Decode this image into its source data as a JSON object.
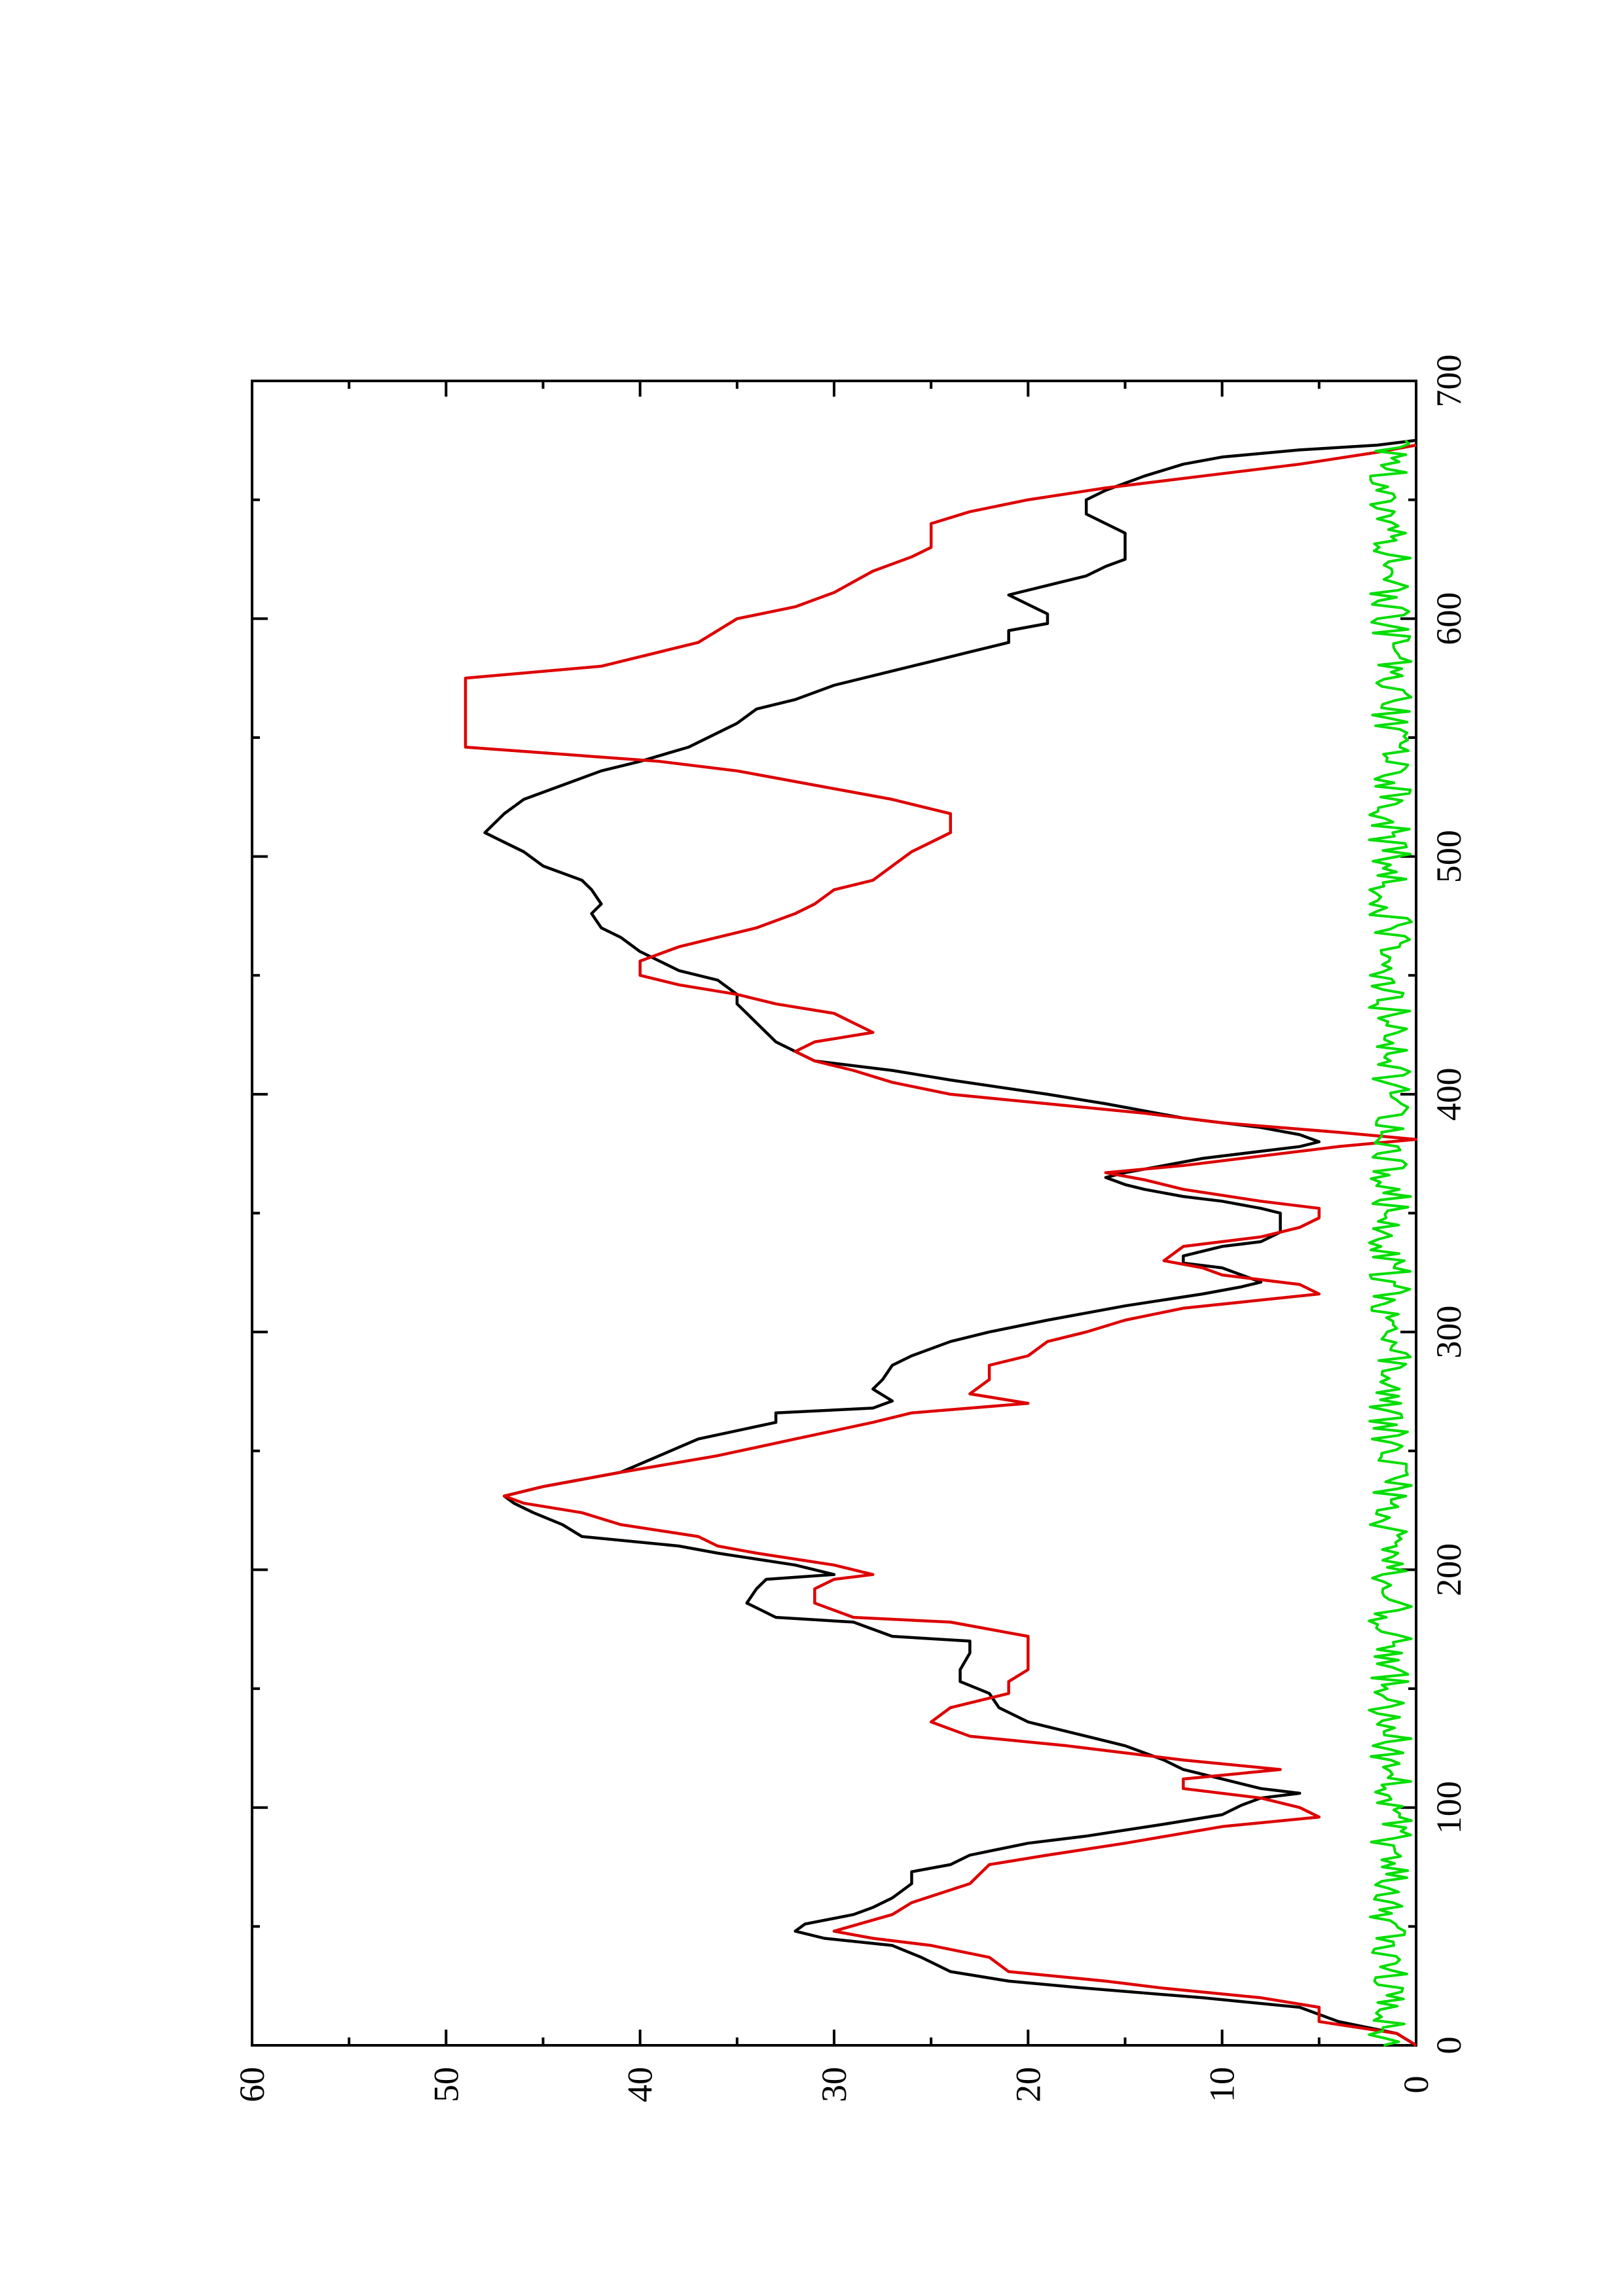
{
  "chart_data": {
    "type": "line",
    "orientation": "rotated-90-ccw",
    "title": "",
    "xlabel": "",
    "ylabel": "",
    "xlim": [
      0,
      700
    ],
    "ylim": [
      0,
      60
    ],
    "x_ticks": [
      0,
      100,
      200,
      300,
      400,
      500,
      600,
      700
    ],
    "y_ticks": [
      0,
      10,
      20,
      30,
      40,
      50,
      60
    ],
    "x_tick_labels": [
      "0",
      "100",
      "200",
      "300",
      "400",
      "500",
      "600",
      "700"
    ],
    "y_tick_labels": [
      "0",
      "10",
      "20",
      "30",
      "40",
      "50",
      "60"
    ],
    "grid": false,
    "legend": "none",
    "series": [
      {
        "color": "#000000",
        "points": [
          [
            0,
            0
          ],
          [
            5,
            1
          ],
          [
            10,
            4
          ],
          [
            16,
            6
          ],
          [
            20,
            11
          ],
          [
            24,
            17
          ],
          [
            27,
            21
          ],
          [
            31,
            24
          ],
          [
            37,
            25.5
          ],
          [
            42,
            27
          ],
          [
            45,
            30.5
          ],
          [
            48,
            32
          ],
          [
            51,
            31.5
          ],
          [
            55,
            29
          ],
          [
            58,
            28
          ],
          [
            62,
            27
          ],
          [
            68,
            26
          ],
          [
            73,
            26
          ],
          [
            76,
            24
          ],
          [
            80,
            23
          ],
          [
            85,
            20
          ],
          [
            88,
            17
          ],
          [
            93,
            13
          ],
          [
            97,
            10
          ],
          [
            101,
            9
          ],
          [
            104,
            8
          ],
          [
            106,
            6
          ],
          [
            108,
            8
          ],
          [
            112,
            10
          ],
          [
            116,
            12
          ],
          [
            120,
            13
          ],
          [
            126,
            15
          ],
          [
            130,
            17
          ],
          [
            136,
            20
          ],
          [
            142,
            21.5
          ],
          [
            148,
            22
          ],
          [
            153,
            23.5
          ],
          [
            158,
            23.5
          ],
          [
            165,
            23
          ],
          [
            170,
            23
          ],
          [
            172,
            27
          ],
          [
            178,
            29
          ],
          [
            180,
            33
          ],
          [
            186,
            34.5
          ],
          [
            192,
            34
          ],
          [
            196,
            33.5
          ],
          [
            198,
            30
          ],
          [
            202,
            32
          ],
          [
            207,
            36
          ],
          [
            210,
            38
          ],
          [
            214,
            43
          ],
          [
            219,
            44
          ],
          [
            224,
            45.5
          ],
          [
            228,
            46.5
          ],
          [
            231,
            47
          ],
          [
            235,
            45
          ],
          [
            241,
            41
          ],
          [
            248,
            39
          ],
          [
            255,
            37
          ],
          [
            262,
            33
          ],
          [
            266,
            33
          ],
          [
            268,
            28
          ],
          [
            271,
            27
          ],
          [
            276,
            28
          ],
          [
            280,
            27.5
          ],
          [
            286,
            27
          ],
          [
            290,
            26
          ],
          [
            296,
            24
          ],
          [
            300,
            22
          ],
          [
            305,
            19
          ],
          [
            311,
            15
          ],
          [
            316,
            11
          ],
          [
            319,
            9
          ],
          [
            321,
            8
          ],
          [
            324,
            9
          ],
          [
            327,
            10
          ],
          [
            329,
            12
          ],
          [
            332,
            12
          ],
          [
            336,
            10
          ],
          [
            338,
            8
          ],
          [
            342,
            7
          ],
          [
            346,
            7
          ],
          [
            350,
            7
          ],
          [
            352,
            8
          ],
          [
            355,
            10
          ],
          [
            357,
            12
          ],
          [
            360,
            14
          ],
          [
            362,
            15
          ],
          [
            365,
            16
          ],
          [
            367,
            15
          ],
          [
            370,
            13
          ],
          [
            373,
            11
          ],
          [
            376,
            8
          ],
          [
            378,
            6
          ],
          [
            380,
            5
          ],
          [
            383,
            6
          ],
          [
            386,
            8
          ],
          [
            390,
            12
          ],
          [
            396,
            16
          ],
          [
            400,
            19
          ],
          [
            406,
            24
          ],
          [
            410,
            27
          ],
          [
            414,
            31
          ],
          [
            418,
            32
          ],
          [
            422,
            33
          ],
          [
            426,
            33.5
          ],
          [
            430,
            34
          ],
          [
            434,
            34.5
          ],
          [
            438,
            35
          ],
          [
            442,
            35
          ],
          [
            448,
            36
          ],
          [
            452,
            38
          ],
          [
            456,
            39
          ],
          [
            460,
            40
          ],
          [
            466,
            41
          ],
          [
            470,
            42
          ],
          [
            476,
            42.5
          ],
          [
            480,
            42
          ],
          [
            486,
            42.5
          ],
          [
            490,
            43
          ],
          [
            496,
            45
          ],
          [
            502,
            46
          ],
          [
            506,
            47
          ],
          [
            510,
            48
          ],
          [
            514,
            47.5
          ],
          [
            518,
            47
          ],
          [
            524,
            46
          ],
          [
            530,
            44
          ],
          [
            536,
            42
          ],
          [
            540,
            40
          ],
          [
            546,
            37.5
          ],
          [
            552,
            36
          ],
          [
            556,
            35
          ],
          [
            562,
            34
          ],
          [
            566,
            32
          ],
          [
            572,
            30
          ],
          [
            578,
            27
          ],
          [
            582,
            25
          ],
          [
            586,
            23
          ],
          [
            590,
            21
          ],
          [
            595,
            21
          ],
          [
            598,
            19
          ],
          [
            602,
            19
          ],
          [
            606,
            20
          ],
          [
            610,
            21
          ],
          [
            614,
            19
          ],
          [
            618,
            17
          ],
          [
            622,
            16
          ],
          [
            625,
            15
          ],
          [
            628,
            15
          ],
          [
            632,
            15
          ],
          [
            636,
            15
          ],
          [
            640,
            16
          ],
          [
            644,
            17
          ],
          [
            650,
            17
          ],
          [
            654,
            16
          ],
          [
            660,
            14
          ],
          [
            665,
            12
          ],
          [
            668,
            10
          ],
          [
            671,
            6
          ],
          [
            673,
            2
          ],
          [
            675,
            0
          ]
        ]
      },
      {
        "color": "#dd0000",
        "points": [
          [
            0,
            0
          ],
          [
            5,
            1
          ],
          [
            10,
            5
          ],
          [
            16,
            5
          ],
          [
            20,
            8
          ],
          [
            24,
            13
          ],
          [
            27,
            16
          ],
          [
            31,
            21
          ],
          [
            37,
            22
          ],
          [
            42,
            25
          ],
          [
            45,
            28
          ],
          [
            48,
            30
          ],
          [
            55,
            27
          ],
          [
            60,
            26
          ],
          [
            68,
            23
          ],
          [
            76,
            22
          ],
          [
            80,
            19
          ],
          [
            85,
            15
          ],
          [
            92,
            10
          ],
          [
            96,
            5
          ],
          [
            100,
            6
          ],
          [
            104,
            8
          ],
          [
            108,
            12
          ],
          [
            112,
            12
          ],
          [
            116,
            7
          ],
          [
            120,
            12
          ],
          [
            126,
            18
          ],
          [
            130,
            23
          ],
          [
            136,
            25
          ],
          [
            142,
            24
          ],
          [
            148,
            21
          ],
          [
            153,
            21
          ],
          [
            158,
            20
          ],
          [
            165,
            20
          ],
          [
            170,
            20
          ],
          [
            172,
            20
          ],
          [
            178,
            24
          ],
          [
            180,
            29
          ],
          [
            186,
            31
          ],
          [
            192,
            31
          ],
          [
            196,
            30
          ],
          [
            198,
            28
          ],
          [
            202,
            30
          ],
          [
            207,
            34
          ],
          [
            210,
            36
          ],
          [
            214,
            37
          ],
          [
            219,
            41
          ],
          [
            224,
            43
          ],
          [
            228,
            46
          ],
          [
            231,
            47
          ],
          [
            235,
            45
          ],
          [
            241,
            41
          ],
          [
            248,
            36
          ],
          [
            255,
            32
          ],
          [
            262,
            28
          ],
          [
            266,
            26
          ],
          [
            270,
            20
          ],
          [
            274,
            23
          ],
          [
            280,
            22
          ],
          [
            286,
            22
          ],
          [
            290,
            20
          ],
          [
            296,
            19
          ],
          [
            300,
            17
          ],
          [
            305,
            15
          ],
          [
            310,
            12
          ],
          [
            316,
            5
          ],
          [
            320,
            6
          ],
          [
            324,
            10
          ],
          [
            327,
            11
          ],
          [
            330,
            13
          ],
          [
            336,
            12
          ],
          [
            340,
            8
          ],
          [
            344,
            6
          ],
          [
            348,
            5
          ],
          [
            352,
            5
          ],
          [
            355,
            8
          ],
          [
            360,
            12
          ],
          [
            364,
            14
          ],
          [
            367,
            16
          ],
          [
            370,
            12
          ],
          [
            374,
            8
          ],
          [
            378,
            4
          ],
          [
            381,
            0
          ],
          [
            384,
            4
          ],
          [
            388,
            10
          ],
          [
            392,
            14
          ],
          [
            396,
            19
          ],
          [
            400,
            24
          ],
          [
            405,
            27
          ],
          [
            410,
            29
          ],
          [
            414,
            31
          ],
          [
            418,
            32
          ],
          [
            422,
            31
          ],
          [
            426,
            28
          ],
          [
            430,
            29
          ],
          [
            434,
            30
          ],
          [
            438,
            33
          ],
          [
            442,
            35
          ],
          [
            446,
            38
          ],
          [
            450,
            40
          ],
          [
            456,
            40
          ],
          [
            462,
            38
          ],
          [
            466,
            36
          ],
          [
            470,
            34
          ],
          [
            476,
            32
          ],
          [
            480,
            31
          ],
          [
            486,
            30
          ],
          [
            490,
            28
          ],
          [
            496,
            27
          ],
          [
            502,
            26
          ],
          [
            506,
            25
          ],
          [
            510,
            24
          ],
          [
            518,
            24
          ],
          [
            524,
            27
          ],
          [
            530,
            31
          ],
          [
            536,
            35
          ],
          [
            540,
            39
          ],
          [
            546,
            49
          ],
          [
            575,
            49
          ],
          [
            580,
            42
          ],
          [
            590,
            37
          ],
          [
            600,
            35
          ],
          [
            605,
            32
          ],
          [
            611,
            30
          ],
          [
            620,
            28
          ],
          [
            626,
            26
          ],
          [
            630,
            25
          ],
          [
            640,
            25
          ],
          [
            645,
            23
          ],
          [
            650,
            20
          ],
          [
            655,
            16
          ],
          [
            660,
            11
          ],
          [
            665,
            6
          ],
          [
            670,
            2
          ],
          [
            673,
            0
          ]
        ]
      },
      {
        "color": "#00dd00",
        "noise": true,
        "baseline": 1,
        "amplitude": 2.2,
        "x_range": [
          0,
          675
        ]
      }
    ]
  }
}
